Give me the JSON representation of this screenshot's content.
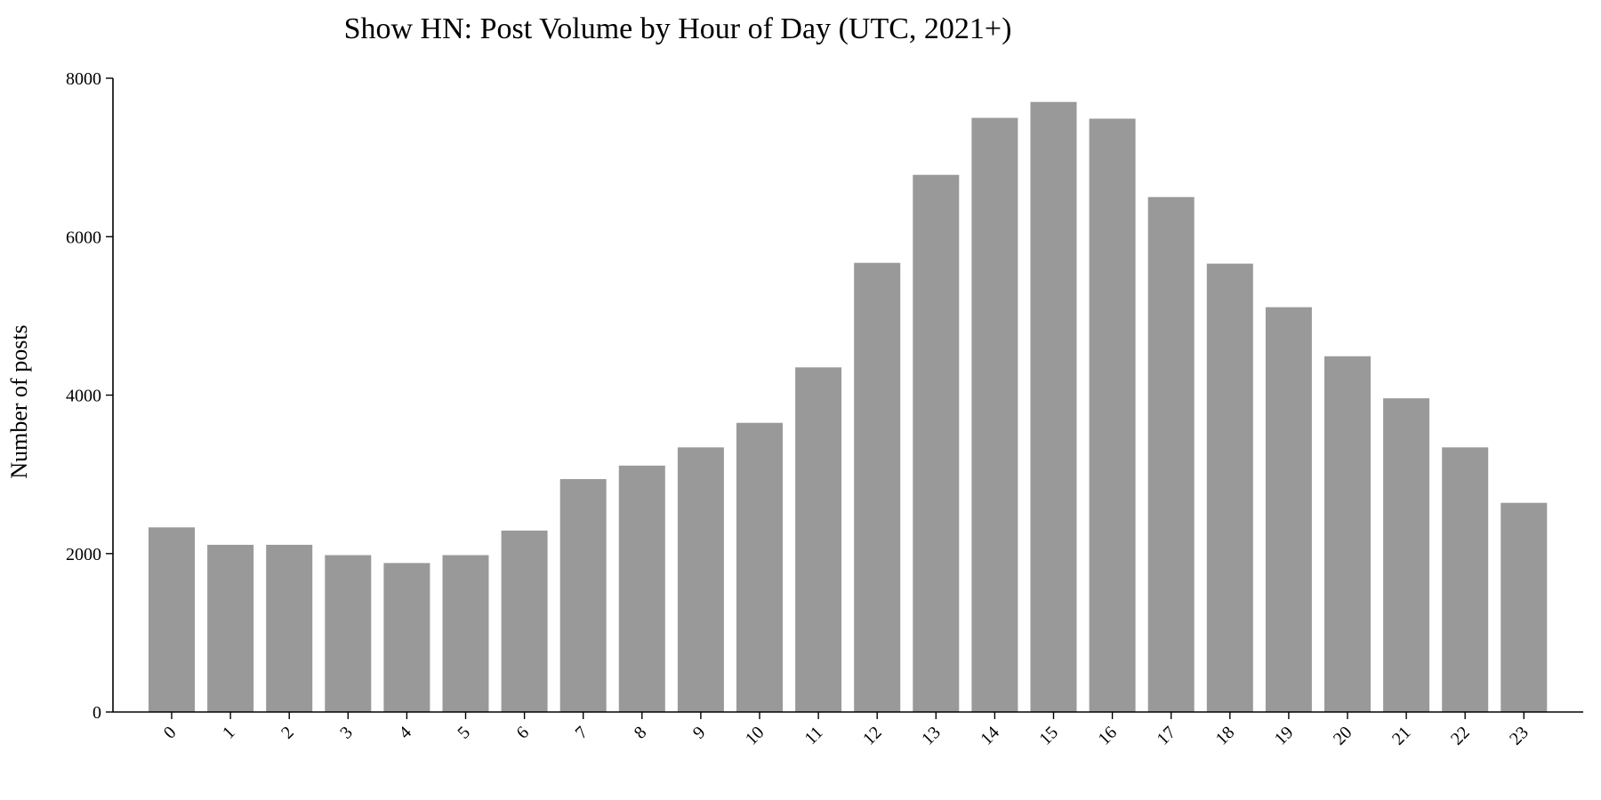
{
  "chart_data": {
    "type": "bar",
    "title": "Show HN: Post Volume by Hour of Day (UTC, 2021+)",
    "xlabel": "",
    "ylabel": "Number of posts",
    "categories": [
      "0",
      "1",
      "2",
      "3",
      "4",
      "5",
      "6",
      "7",
      "8",
      "9",
      "10",
      "11",
      "12",
      "13",
      "14",
      "15",
      "16",
      "17",
      "18",
      "19",
      "20",
      "21",
      "22",
      "23"
    ],
    "values": [
      2330,
      2110,
      2110,
      1980,
      1880,
      1980,
      2290,
      2940,
      3110,
      3340,
      3650,
      4350,
      5670,
      6780,
      7500,
      7700,
      7490,
      6500,
      5660,
      5110,
      4490,
      3960,
      3340,
      2640
    ],
    "ylim": [
      0,
      8000
    ],
    "yticks": [
      0,
      2000,
      4000,
      6000,
      8000
    ],
    "bar_color": "#999999",
    "grid": false,
    "legend": "none"
  }
}
